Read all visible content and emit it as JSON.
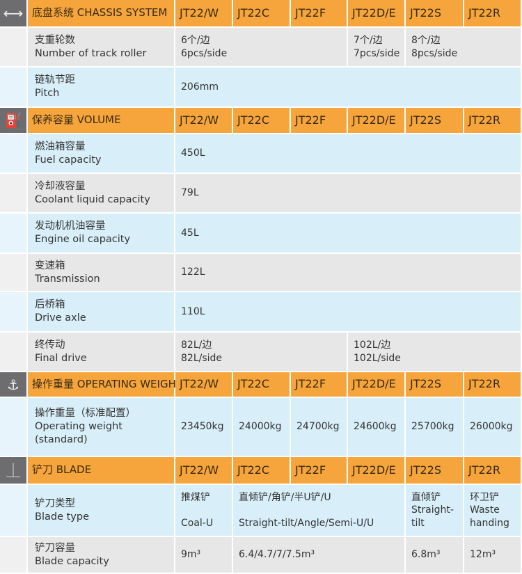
{
  "models": [
    "JT22/W",
    "JT22C",
    "JT22F",
    "JT22D/E",
    "JT22S",
    "JT22R"
  ],
  "colors": {
    "header": "#f6a53c",
    "icon_bg": "#6d6d6f",
    "row_gray": "#e7e7e8",
    "row_blue": "#d8eef9"
  },
  "sections": [
    {
      "icon": "double-arrow-icon",
      "glyph": "⟷",
      "title": "底盘系统 CHASSIS SYSTEM",
      "rows": [
        {
          "label": "支重轮数\nNumber of  track roller",
          "cells": [
            {
              "span": 3,
              "text": "6个/边\n6pcs/side"
            },
            {
              "span": 1,
              "text": "7个/边\n7pcs/side"
            },
            {
              "span": 2,
              "text": "8个/边\n8pcs/side"
            }
          ]
        },
        {
          "label": "链轨节距\nPitch",
          "cells": [
            {
              "span": 6,
              "text": "206mm"
            }
          ]
        }
      ]
    },
    {
      "icon": "fuel-can-icon",
      "glyph": "⛽",
      "title": "保养容量 VOLUME",
      "rows": [
        {
          "label": "燃油箱容量\nFuel capacity",
          "cells": [
            {
              "span": 6,
              "text": "450L"
            }
          ]
        },
        {
          "label": "冷却液容量\nCoolant liquid capacity",
          "cells": [
            {
              "span": 6,
              "text": "79L"
            }
          ]
        },
        {
          "label": "发动机机油容量\nEngine oil capacity",
          "cells": [
            {
              "span": 6,
              "text": "45L"
            }
          ]
        },
        {
          "label": "变速箱\nTransmission",
          "cells": [
            {
              "span": 6,
              "text": "122L"
            }
          ]
        },
        {
          "label": "后桥箱\nDrive axle",
          "cells": [
            {
              "span": 6,
              "text": "110L"
            }
          ]
        },
        {
          "label": "终传动\nFinal drive",
          "cells": [
            {
              "span": 3,
              "text": "82L/边\n82L/side"
            },
            {
              "span": 3,
              "text": "102L/边\n102L/side"
            }
          ]
        }
      ]
    },
    {
      "icon": "crane-hook-icon",
      "glyph": "⚓",
      "title": "操作重量 OPERATING WEIGHT",
      "rows": [
        {
          "label": "操作重量（标准配置）\nOperating weight\n(standard)",
          "cells": [
            {
              "span": 1,
              "text": "23450kg"
            },
            {
              "span": 1,
              "text": "24000kg"
            },
            {
              "span": 1,
              "text": "24700kg"
            },
            {
              "span": 1,
              "text": "24600kg"
            },
            {
              "span": 1,
              "text": "25700kg"
            },
            {
              "span": 1,
              "text": "26000kg"
            }
          ]
        }
      ]
    },
    {
      "icon": "blade-icon",
      "glyph": "⏊",
      "title": "铲刀 BLADE",
      "rows": [
        {
          "label": "铲刀类型\nBlade type",
          "cells": [
            {
              "span": 1,
              "text": "推煤铲\n\nCoal-U"
            },
            {
              "span": 3,
              "text": "直倾铲/角铲/半U铲/U\n\nStraight-tilt/Angle/Semi-U/U"
            },
            {
              "span": 1,
              "text": "直倾铲\nStraight-\ntilt"
            },
            {
              "span": 1,
              "text": "环卫铲\nWaste\nhanding"
            }
          ]
        },
        {
          "label": "铲刀容量\nBlade capacity",
          "cells": [
            {
              "span": 1,
              "text": "9m³"
            },
            {
              "span": 3,
              "text": "6.4/4.7/7/7.5m³"
            },
            {
              "span": 1,
              "text": "6.8m³"
            },
            {
              "span": 1,
              "text": "12m³"
            }
          ]
        }
      ]
    }
  ]
}
